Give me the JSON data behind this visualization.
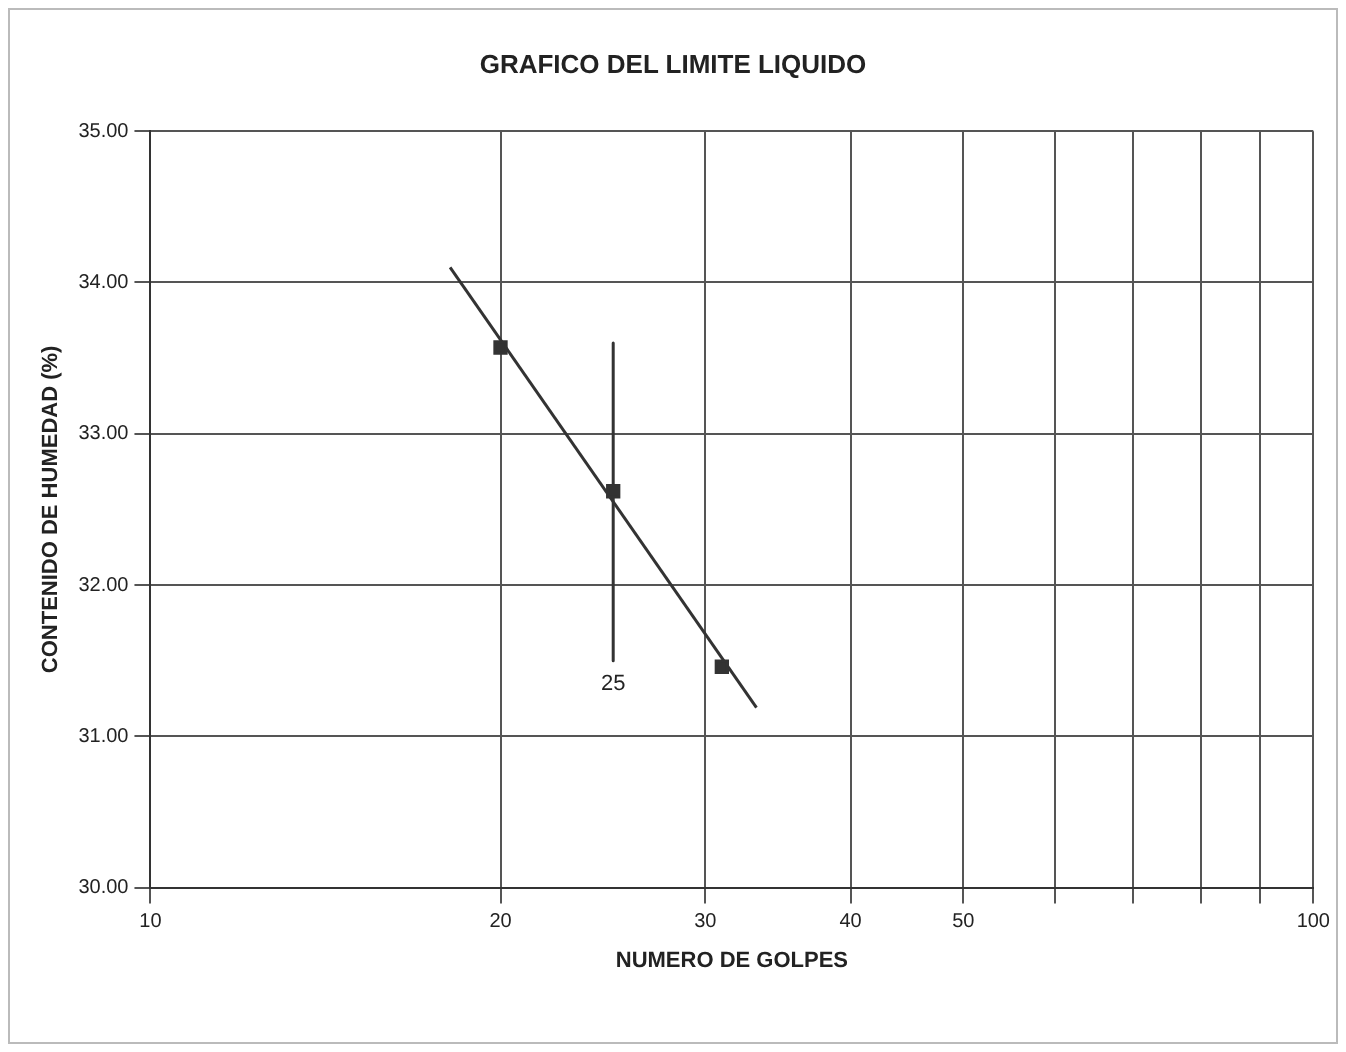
{
  "chart_data": {
    "type": "scatter",
    "title": "GRAFICO DEL LIMITE LIQUIDO",
    "xlabel": "NUMERO DE GOLPES",
    "ylabel": "CONTENIDO DE HUMEDAD (%)",
    "log": "x",
    "grid": true,
    "legend": false,
    "xlim": [
      10,
      100
    ],
    "xticks": [
      10,
      20,
      30,
      40,
      50,
      {
        "value": 60,
        "label": null
      },
      {
        "value": 70,
        "label": null
      },
      {
        "value": 80,
        "label": null
      },
      {
        "value": 90,
        "label": null
      },
      100
    ],
    "ylim": [
      30,
      35
    ],
    "yticks": [
      {
        "value": 30,
        "label": "30.00"
      },
      {
        "value": 31,
        "label": "31.00"
      },
      {
        "value": 32,
        "label": "32.00"
      },
      {
        "value": 33,
        "label": "33.00"
      },
      {
        "value": 34,
        "label": "34.00"
      },
      {
        "value": 35,
        "label": "35.00"
      }
    ],
    "series": [
      {
        "marker": "square",
        "color": "#333333",
        "x": [
          20,
          25,
          31
        ],
        "values": [
          33.57,
          32.62,
          31.46
        ]
      },
      {
        "type": "line",
        "marker": "none",
        "line_style": "solid",
        "color": "#333333",
        "x": [
          18.1,
          33.2
        ],
        "values": [
          34.1,
          31.19
        ]
      },
      {
        "type": "line",
        "marker": "none",
        "line_style": "solid",
        "color": "#333333",
        "x": [
          25,
          25
        ],
        "values": [
          33.6,
          31.5
        ]
      }
    ],
    "annotations": [
      "25"
    ]
  }
}
